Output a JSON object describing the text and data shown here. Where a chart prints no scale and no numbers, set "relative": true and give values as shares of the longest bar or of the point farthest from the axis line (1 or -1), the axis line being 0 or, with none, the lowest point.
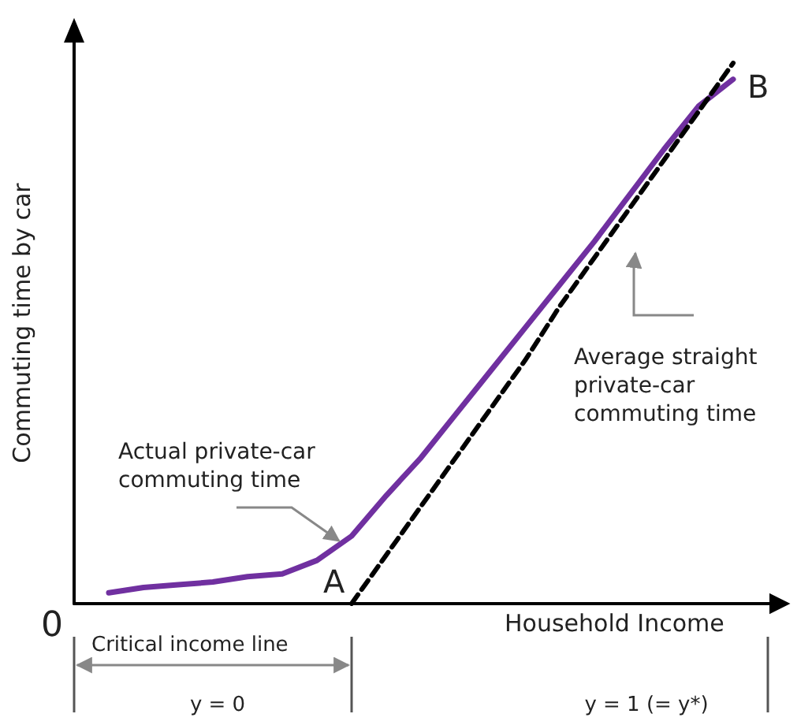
{
  "chart_data": {
    "type": "line",
    "relative": true,
    "xlabel": "Household Income",
    "ylabel": "Commuting time by car",
    "categories": [
      null,
      null,
      null,
      null,
      null,
      null,
      null,
      null,
      null,
      null,
      null,
      null,
      null,
      null,
      null,
      null,
      null,
      null,
      null,
      null,
      null
    ],
    "series": [
      {
        "color": "#7030a0",
        "line_style": "solid",
        "values": [
          null,
          0.02,
          0.03,
          0.035,
          0.04,
          0.05,
          0.055,
          0.08,
          0.125,
          0.2,
          0.27,
          0.35,
          0.43,
          0.51,
          0.59,
          0.67,
          0.755,
          0.84,
          0.92,
          0.97,
          null
        ]
      },
      {
        "color": "#000000",
        "line_style": "dashed",
        "values": [
          null,
          null,
          null,
          null,
          null,
          null,
          null,
          null,
          0,
          0.09,
          0.18,
          0.27,
          0.36,
          0.45,
          0.55,
          0.64,
          0.73,
          0.82,
          0.91,
          1,
          null
        ]
      }
    ],
    "annotations": [
      "0",
      "A",
      "B",
      "Actual private-car commuting time",
      "Average straight private-car commuting time",
      "Critical income line",
      "y = 0",
      "y = 1 (= y*)"
    ],
    "grid": false,
    "marker": "none"
  }
}
